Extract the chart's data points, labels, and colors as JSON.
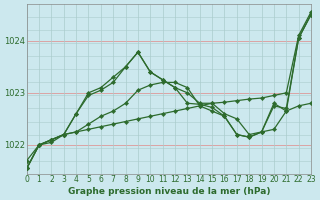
{
  "xlabel": "Graphe pression niveau de la mer (hPa)",
  "bg_color": "#cce8ee",
  "line_color": "#2d6b2d",
  "grid_color": "#aacccc",
  "red_grid_color": "#dd9999",
  "xmin": 0,
  "xmax": 23,
  "ymin": 1021.45,
  "ymax": 1024.7,
  "yticks": [
    1022,
    1023,
    1024
  ],
  "xticks": [
    0,
    1,
    2,
    3,
    4,
    5,
    6,
    7,
    8,
    9,
    10,
    11,
    12,
    13,
    14,
    15,
    16,
    17,
    18,
    19,
    20,
    21,
    22,
    23
  ],
  "series": [
    {
      "x": [
        0,
        1,
        2,
        3,
        4,
        5,
        6,
        7,
        8,
        9,
        10,
        11,
        12,
        13,
        14,
        15,
        16,
        17,
        18,
        19,
        20,
        21,
        22,
        23
      ],
      "y": [
        1021.7,
        1022.0,
        1022.05,
        1022.2,
        1022.25,
        1022.3,
        1022.35,
        1022.4,
        1022.45,
        1022.5,
        1022.55,
        1022.6,
        1022.65,
        1022.7,
        1022.75,
        1022.8,
        1022.82,
        1022.85,
        1022.88,
        1022.9,
        1022.95,
        1023.0,
        1024.1,
        1024.55
      ]
    },
    {
      "x": [
        0,
        1,
        2,
        3,
        4,
        5,
        6,
        7,
        8,
        9,
        10,
        11,
        12,
        13,
        14,
        15,
        16,
        17,
        18,
        19,
        20,
        21,
        22,
        23
      ],
      "y": [
        1021.55,
        1022.0,
        1022.1,
        1022.2,
        1022.25,
        1022.4,
        1022.55,
        1022.65,
        1022.8,
        1023.05,
        1023.15,
        1023.2,
        1023.2,
        1023.1,
        1022.75,
        1022.65,
        1022.55,
        1022.2,
        1022.15,
        1022.25,
        1022.3,
        1022.65,
        1022.75,
        1022.8
      ]
    },
    {
      "x": [
        0,
        1,
        2,
        3,
        4,
        5,
        6,
        7,
        8,
        9,
        10,
        11,
        12,
        13,
        14,
        15,
        16,
        17,
        18,
        19,
        20,
        21,
        22,
        23
      ],
      "y": [
        1021.55,
        1022.0,
        1022.1,
        1022.2,
        1022.6,
        1022.95,
        1023.05,
        1023.2,
        1023.5,
        1023.78,
        1023.4,
        1023.25,
        1023.1,
        1022.8,
        1022.78,
        1022.72,
        1022.55,
        1022.2,
        1022.15,
        1022.25,
        1022.8,
        1022.65,
        1024.05,
        1024.5
      ]
    },
    {
      "x": [
        0,
        1,
        2,
        3,
        4,
        5,
        6,
        7,
        8,
        9,
        10,
        11,
        12,
        13,
        14,
        15,
        16,
        17,
        18,
        19,
        20,
        21,
        22,
        23
      ],
      "y": [
        1021.55,
        1022.0,
        1022.1,
        1022.2,
        1022.6,
        1023.0,
        1023.1,
        1023.3,
        1023.5,
        1023.78,
        1023.4,
        1023.25,
        1023.1,
        1023.0,
        1022.8,
        1022.8,
        1022.6,
        1022.5,
        1022.2,
        1022.25,
        1022.75,
        1022.7,
        1024.05,
        1024.5
      ]
    }
  ]
}
